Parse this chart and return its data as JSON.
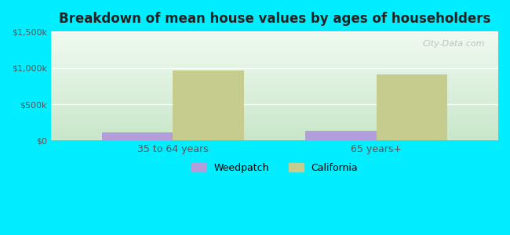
{
  "title": "Breakdown of mean house values by ages of householders",
  "categories": [
    "35 to 64 years",
    "65 years+"
  ],
  "weedpatch_values": [
    110000,
    130000
  ],
  "california_values": [
    960000,
    910000
  ],
  "weedpatch_color": "#b39ddb",
  "california_color": "#c5cc8e",
  "background_color": "#00eeff",
  "ylim": [
    0,
    1500000
  ],
  "yticks": [
    0,
    500000,
    1000000,
    1500000
  ],
  "ytick_labels": [
    "$0",
    "$500k",
    "$1,000k",
    "$1,500k"
  ],
  "legend_labels": [
    "Weedpatch",
    "California"
  ],
  "watermark": "City-Data.com",
  "bar_width": 0.35
}
